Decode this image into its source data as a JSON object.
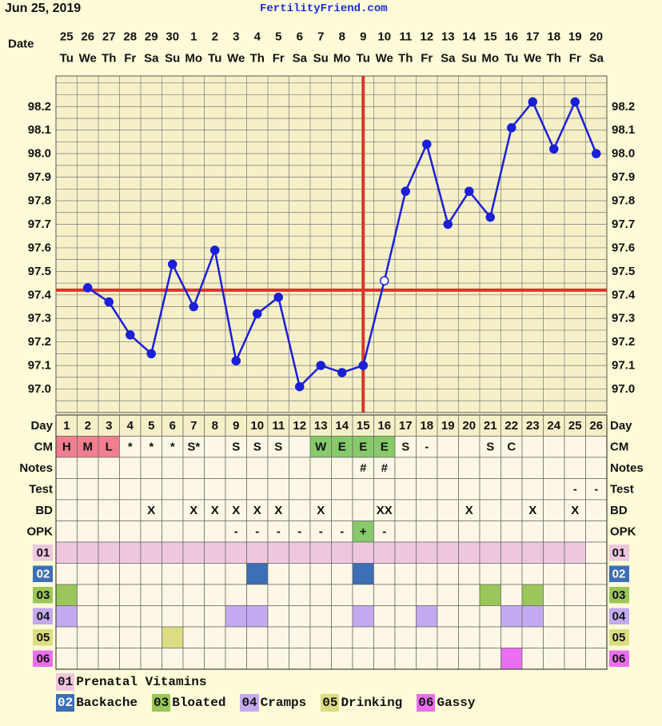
{
  "header": {
    "date": "Jun 25, 2019",
    "site": "FertilityFriend.com"
  },
  "row_labels": {
    "date": "Date",
    "day": "Day",
    "cm": "CM",
    "notes": "Notes",
    "test": "Test",
    "bd": "BD",
    "opk": "OPK"
  },
  "colors": {
    "background": "#fdfbd8",
    "grid_cell": "#f6f0c8",
    "table_cell": "#fcf7e6",
    "temp_line": "#1a1fd8",
    "coverline": "#d9352a",
    "ovulation_line": "#d9352a",
    "cm_menstrual": "#f07e8f",
    "cm_egg_white": "#88c96b",
    "opk_positive": "#88c96b"
  },
  "chart_data": {
    "type": "line",
    "dates": [
      "25",
      "26",
      "27",
      "28",
      "29",
      "30",
      "1",
      "2",
      "3",
      "4",
      "5",
      "6",
      "7",
      "8",
      "9",
      "10",
      "11",
      "12",
      "13",
      "14",
      "15",
      "16",
      "17",
      "18",
      "19",
      "20"
    ],
    "weekdays": [
      "Tu",
      "We",
      "Th",
      "Fr",
      "Sa",
      "Su",
      "Mo",
      "Tu",
      "We",
      "Th",
      "Fr",
      "Sa",
      "Su",
      "Mo",
      "Tu",
      "We",
      "Th",
      "Fr",
      "Sa",
      "Su",
      "Mo",
      "Tu",
      "We",
      "Th",
      "Fr",
      "Sa"
    ],
    "cycle_days": [
      "1",
      "2",
      "3",
      "4",
      "5",
      "6",
      "7",
      "8",
      "9",
      "10",
      "11",
      "12",
      "13",
      "14",
      "15",
      "16",
      "17",
      "18",
      "19",
      "20",
      "21",
      "22",
      "23",
      "24",
      "25",
      "26"
    ],
    "series": [
      {
        "values": [
          null,
          97.43,
          97.37,
          97.23,
          97.15,
          97.53,
          97.35,
          97.59,
          97.12,
          97.32,
          97.39,
          97.01,
          97.1,
          97.07,
          97.1,
          97.46,
          97.84,
          98.04,
          97.7,
          97.84,
          97.73,
          98.11,
          98.22,
          98.02,
          98.22,
          98.0
        ],
        "open_point_index": 15
      }
    ],
    "yticks": [
      "97.0",
      "97.1",
      "97.2",
      "97.3",
      "97.4",
      "97.5",
      "97.6",
      "97.7",
      "97.8",
      "97.9",
      "98.0",
      "98.1",
      "98.2"
    ],
    "ylim": [
      96.9,
      98.33
    ],
    "coverline": 97.42,
    "ovulation_day_index": 14,
    "grid": true
  },
  "cm": [
    "H",
    "M",
    "L",
    "*",
    "*",
    "*",
    "S*",
    "",
    "S",
    "S",
    "S",
    "",
    "W",
    "E",
    "E",
    "E",
    "S",
    "-",
    "",
    "",
    "S",
    "C",
    "",
    "",
    "",
    ""
  ],
  "notes": [
    "",
    "",
    "",
    "",
    "",
    "",
    "",
    "",
    "",
    "",
    "",
    "",
    "",
    "",
    "#",
    "#",
    "",
    "",
    "",
    "",
    "",
    "",
    "",
    "",
    "",
    ""
  ],
  "test": [
    "",
    "",
    "",
    "",
    "",
    "",
    "",
    "",
    "",
    "",
    "",
    "",
    "",
    "",
    "",
    "",
    "",
    "",
    "",
    "",
    "",
    "",
    "",
    "",
    "-",
    "-"
  ],
  "bd": [
    "",
    "",
    "",
    "",
    "X",
    "",
    "X",
    "X",
    "X",
    "X",
    "X",
    "",
    "X",
    "",
    "",
    "XX",
    "",
    "",
    "",
    "X",
    "",
    "",
    "X",
    "",
    "X",
    ""
  ],
  "opk": [
    "",
    "",
    "",
    "",
    "",
    "",
    "",
    "",
    "-",
    "-",
    "-",
    "-",
    "-",
    "-",
    "+",
    "-",
    "",
    "",
    "",
    "",
    "",
    "",
    "",
    "",
    "",
    ""
  ],
  "symptoms": [
    {
      "code": "01",
      "label": "Prenatal Vitamins",
      "color": "#eec6de",
      "days": [
        1,
        2,
        3,
        4,
        5,
        6,
        7,
        8,
        9,
        10,
        11,
        12,
        13,
        14,
        15,
        16,
        17,
        18,
        19,
        20,
        21,
        22,
        23,
        24,
        25
      ]
    },
    {
      "code": "02",
      "label": "Backache",
      "color": "#3b6fb6",
      "days": [
        10,
        15
      ]
    },
    {
      "code": "03",
      "label": "Bloated",
      "color": "#9ac65a",
      "days": [
        1,
        21,
        23
      ]
    },
    {
      "code": "04",
      "label": "Cramps",
      "color": "#c3aaf0",
      "days": [
        1,
        9,
        10,
        15,
        18,
        22,
        23
      ]
    },
    {
      "code": "05",
      "label": "Drinking",
      "color": "#dcdc82",
      "days": [
        6
      ]
    },
    {
      "code": "06",
      "label": "Gassy",
      "color": "#ea6ef0",
      "days": [
        22
      ]
    }
  ]
}
